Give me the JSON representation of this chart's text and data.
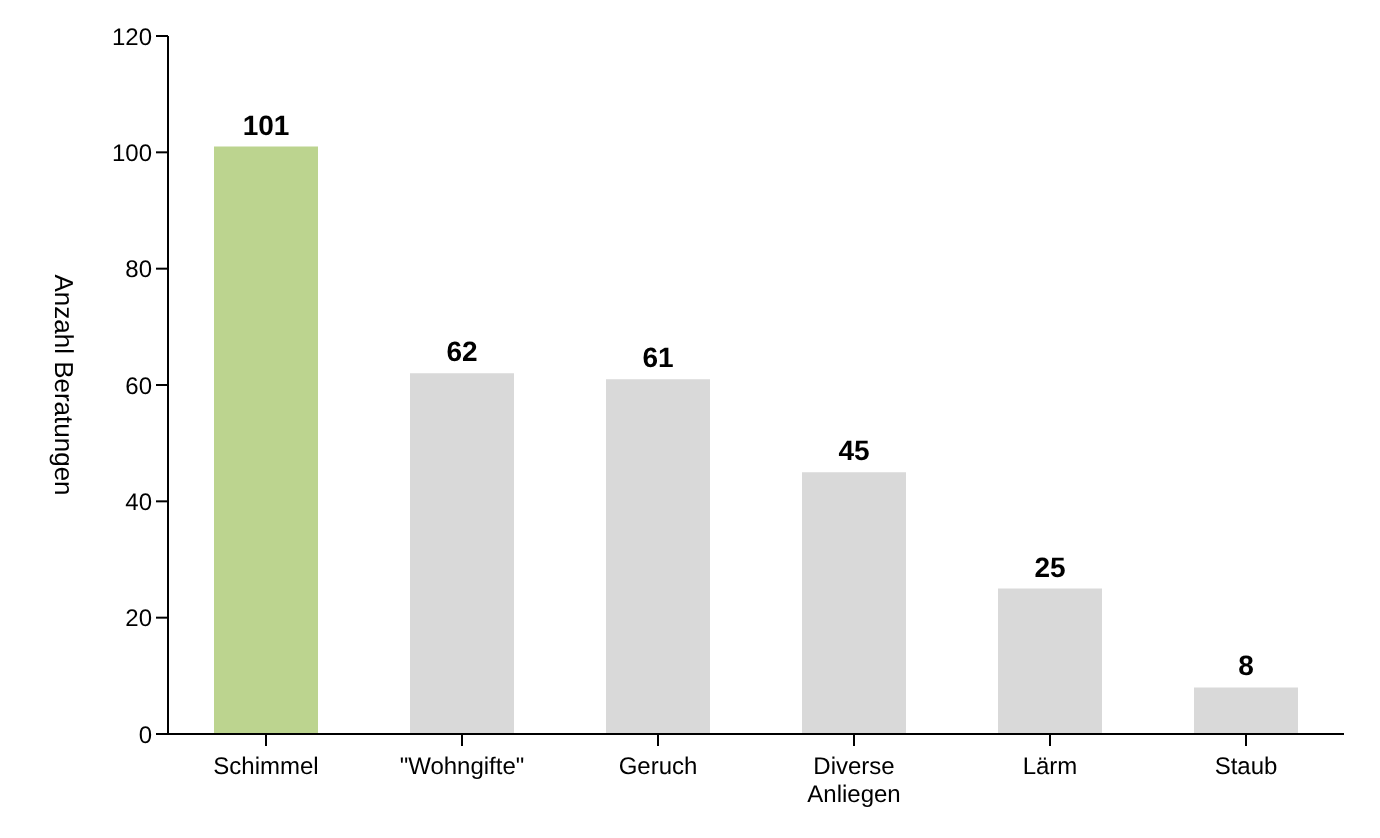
{
  "chart_data": {
    "type": "bar",
    "ylabel": "Anzahl Beratungen",
    "categories": [
      "Schimmel",
      "\"Wohngifte\"",
      "Geruch",
      "Diverse Anliegen",
      "Lärm",
      "Staub"
    ],
    "values": [
      101,
      62,
      61,
      45,
      25,
      8
    ],
    "colors": [
      "#bcd48f",
      "#d9d9d9",
      "#d9d9d9",
      "#d9d9d9",
      "#d9d9d9",
      "#d9d9d9"
    ],
    "ylim": [
      0,
      120
    ],
    "yticks": [
      0,
      20,
      40,
      60,
      80,
      100,
      120
    ],
    "grid": false,
    "data_labels": true
  }
}
